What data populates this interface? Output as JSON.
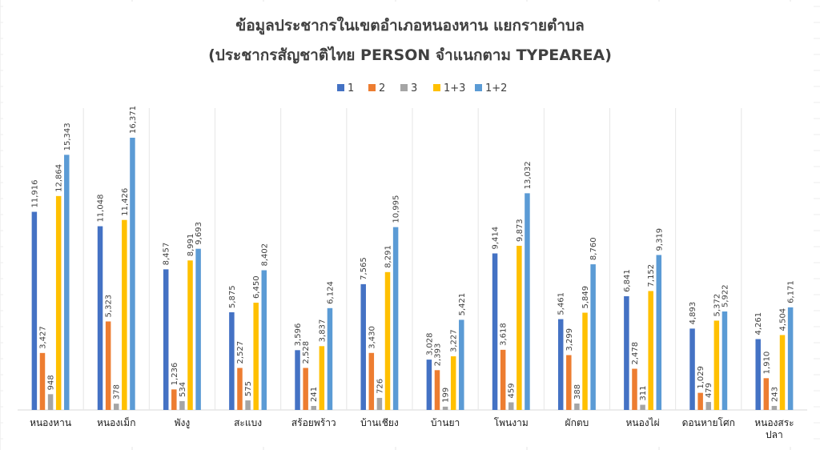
{
  "chart_data": {
    "type": "bar",
    "title": "ข้อมูลประชากรในเขตอำเภอหนองหาน แยกรายตำบล",
    "subtitle": "(ประชากรสัญชาติไทย PERSON จำแนกตาม TYPEAREA)",
    "categories": [
      "หนองหาน",
      "หนองเม็ก",
      "พังงู",
      "สะแบง",
      "สร้อยพร้าว",
      "บ้านเชียง",
      "บ้านยา",
      "โพนงาม",
      "ผักตบ",
      "หนองไผ่",
      "ดอนหายโศก",
      "หนองสระปลา"
    ],
    "category_lines": [
      [
        "หนองหาน"
      ],
      [
        "หนองเม็ก"
      ],
      [
        "พังงู"
      ],
      [
        "สะแบง"
      ],
      [
        "สร้อยพร้าว"
      ],
      [
        "บ้านเชียง"
      ],
      [
        "บ้านยา"
      ],
      [
        "โพนงาม"
      ],
      [
        "ผักตบ"
      ],
      [
        "หนองไผ่"
      ],
      [
        "ดอนหายโศก"
      ],
      [
        "หนองสระ",
        "ปลา"
      ]
    ],
    "series": [
      {
        "name": "1",
        "color": "#4472C4",
        "values": [
          11916,
          11048,
          8457,
          5875,
          3596,
          7565,
          3028,
          9414,
          5461,
          6841,
          4893,
          4261
        ]
      },
      {
        "name": "2",
        "color": "#ED7D31",
        "values": [
          3427,
          5323,
          1236,
          2527,
          2528,
          3430,
          2393,
          3618,
          3299,
          2478,
          1029,
          1910
        ]
      },
      {
        "name": "3",
        "color": "#A5A5A5",
        "values": [
          948,
          378,
          534,
          575,
          241,
          726,
          199,
          459,
          388,
          311,
          479,
          243
        ]
      },
      {
        "name": "1+3",
        "color": "#FFC000",
        "values": [
          12864,
          11426,
          8991,
          6450,
          3837,
          8291,
          3227,
          9873,
          5849,
          7152,
          5372,
          4504
        ]
      },
      {
        "name": "1+2",
        "color": "#5B9BD5",
        "values": [
          15343,
          16371,
          9693,
          8402,
          6124,
          10995,
          5421,
          13032,
          8760,
          9319,
          5922,
          6171
        ]
      }
    ],
    "ylim": [
      0,
      18000
    ],
    "legend": "top",
    "grid": false,
    "data_labels": true
  }
}
